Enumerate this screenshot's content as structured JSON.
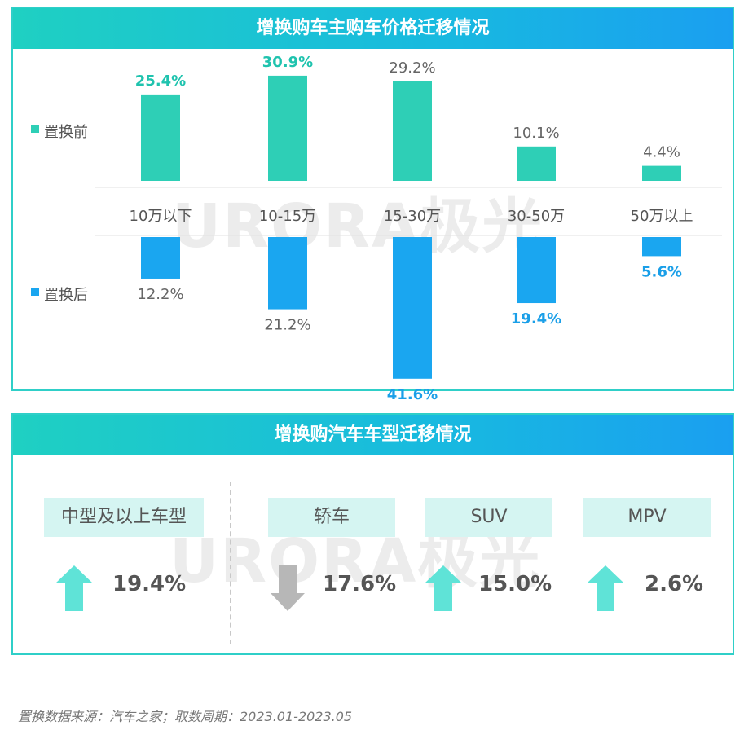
{
  "panel1": {
    "title": "增换购车主购车价格迁移情况"
  },
  "panel2": {
    "title": "增换购汽车车型迁移情况"
  },
  "watermark": "URORA极光",
  "chart_data": {
    "type": "bar",
    "categories": [
      "10万以下",
      "10-15万",
      "15-30万",
      "30-50万",
      "50万以上"
    ],
    "series": [
      {
        "name": "置换前",
        "values": [
          25.4,
          30.9,
          29.2,
          10.1,
          4.4
        ],
        "labels": [
          "25.4%",
          "30.9%",
          "29.2%",
          "10.1%",
          "4.4%"
        ],
        "highlight": [
          true,
          true,
          false,
          false,
          false
        ],
        "color": "#2ecfb6",
        "direction": "up"
      },
      {
        "name": "置换后",
        "values": [
          12.2,
          21.2,
          41.6,
          19.4,
          5.6
        ],
        "labels": [
          "12.2%",
          "21.2%",
          "41.6%",
          "19.4%",
          "5.6%"
        ],
        "highlight": [
          false,
          false,
          true,
          true,
          true
        ],
        "color": "#1aa6f0",
        "direction": "down"
      }
    ],
    "ylim": [
      0,
      45
    ]
  },
  "colors": {
    "teal": "#2ecfb6",
    "blue": "#1aa6f0",
    "teal_text": "#1fc3ae",
    "blue_text": "#1a9fe8",
    "arrow_up": "#5fe3d7",
    "arrow_down": "#b7b7b7"
  },
  "types": [
    {
      "label": "中型及以上车型",
      "value": "19.4%",
      "direction": "up"
    },
    {
      "label": "轿车",
      "value": "17.6%",
      "direction": "down"
    },
    {
      "label": "SUV",
      "value": "15.0%",
      "direction": "up"
    },
    {
      "label": "MPV",
      "value": "2.6%",
      "direction": "up"
    }
  ],
  "source": "置换数据来源：汽车之家；取数周期：2023.01-2023.05"
}
